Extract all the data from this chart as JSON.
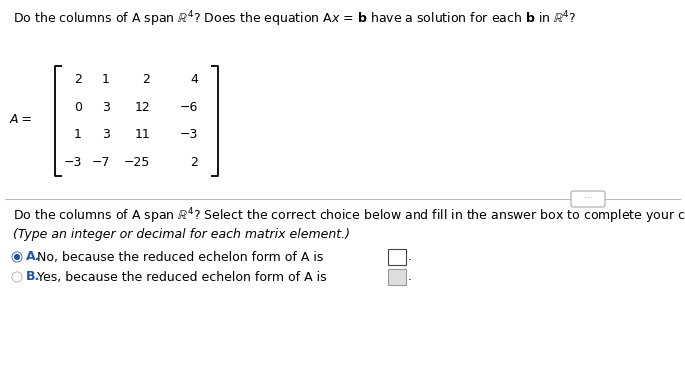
{
  "bg_color": "#ffffff",
  "text_color": "#000000",
  "blue_color": "#2255aa",
  "separator_color": "#bbbbbb",
  "matrix": [
    [
      "2",
      "1",
      "2",
      "4"
    ],
    [
      "0",
      "3",
      "12",
      "−6"
    ],
    [
      "1",
      "3",
      "11",
      "−3"
    ],
    [
      "−3",
      "−7",
      "−25",
      "2"
    ]
  ],
  "fontsize_main": 9.0,
  "fontsize_matrix": 9.0
}
